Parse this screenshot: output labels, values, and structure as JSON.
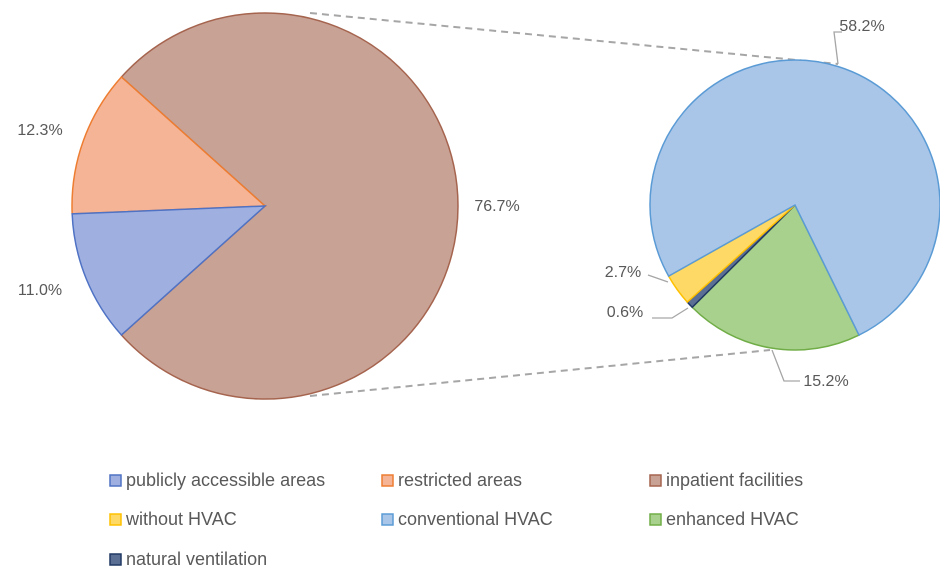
{
  "chart_data": [
    {
      "type": "pie",
      "categories": [
        "publicly accessible areas",
        "restricted areas",
        "inpatient facilities"
      ],
      "values": [
        11.0,
        12.3,
        76.7
      ],
      "value_labels": [
        "11.0%",
        "12.3%",
        "76.7%"
      ],
      "colors": [
        "#9fb0e0",
        "#f6b497",
        "#c9a296"
      ],
      "edge_colors": [
        "#4f72c4",
        "#ed7d31",
        "#a5644e"
      ]
    },
    {
      "type": "pie",
      "categories": [
        "without HVAC",
        "conventional HVAC",
        "enhanced HVAC",
        "natural ventilation"
      ],
      "values": [
        2.7,
        58.2,
        15.2,
        0.6
      ],
      "value_labels": [
        "2.7%",
        "58.2%",
        "15.2%",
        "0.6%"
      ],
      "colors": [
        "#ffd966",
        "#a9c6e8",
        "#a9d18e",
        "#5b6f95"
      ],
      "edge_colors": [
        "#ffc000",
        "#5b9bd5",
        "#70ad47",
        "#203864"
      ]
    }
  ]
}
